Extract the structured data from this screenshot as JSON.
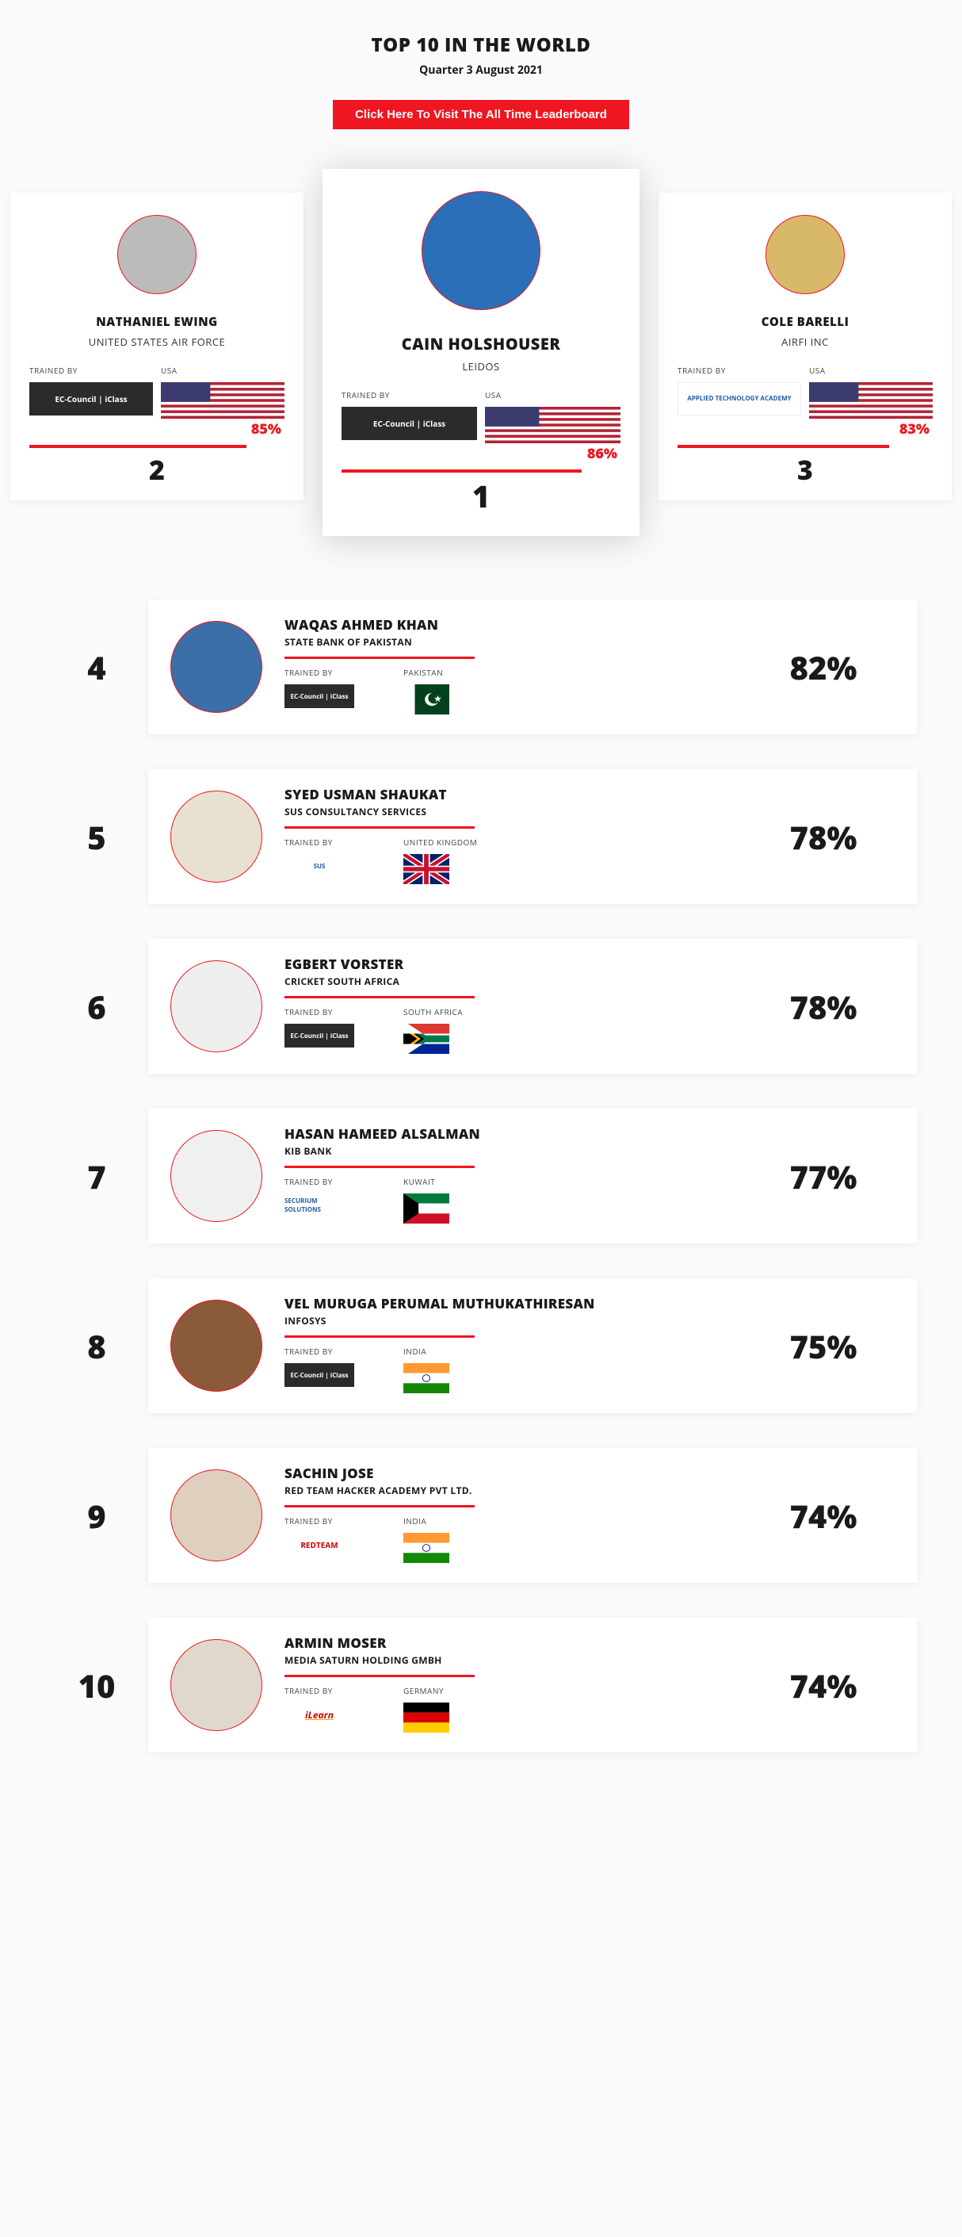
{
  "header": {
    "title": "TOP 10 IN THE WORLD",
    "subtitle": "Quarter 3 August 2021",
    "cta": "Click Here To Visit The All Time Leaderboard"
  },
  "labels": {
    "trained_by": "TRAINED BY"
  },
  "colors": {
    "accent": "#ee1620",
    "card_bg": "#ffffff",
    "page_bg": "#fafafa"
  },
  "podium": [
    {
      "rank": "2",
      "name": "NATHANIEL EWING",
      "org": "UNITED STATES AIR FORCE",
      "trainer": "EC-Council | iClass",
      "trainer_style": "dark",
      "country_label": "USA",
      "flag": "usa",
      "percent": "85%",
      "percent_fill": 85,
      "avatar_bg": "#bbbbbb"
    },
    {
      "rank": "1",
      "name": "CAIN HOLSHOUSER",
      "org": "LEIDOS",
      "trainer": "EC-Council | iClass",
      "trainer_style": "dark",
      "country_label": "USA",
      "flag": "usa",
      "percent": "86%",
      "percent_fill": 86,
      "avatar_bg": "#2a6fb8"
    },
    {
      "rank": "3",
      "name": "COLE BARELLI",
      "org": "AIRFI INC",
      "trainer": "APPLIED TECHNOLOGY ACADEMY",
      "trainer_style": "light",
      "country_label": "USA",
      "flag": "usa",
      "percent": "83%",
      "percent_fill": 83,
      "avatar_bg": "#d8b96a"
    }
  ],
  "rows": [
    {
      "rank": "4",
      "name": "WAQAS AHMED KHAN",
      "org": "STATE BANK OF PAKISTAN",
      "trainer": "EC-Council | iClass",
      "trainer_style": "dark",
      "country_label": "PAKISTAN",
      "flag": "pakistan",
      "percent": "82%",
      "avatar_bg": "#3a6fa8"
    },
    {
      "rank": "5",
      "name": "SYED USMAN SHAUKAT",
      "org": "SUS CONSULTANCY SERVICES",
      "trainer": "SUS",
      "trainer_style": "light",
      "country_label": "UNITED KINGDOM",
      "flag": "uk",
      "percent": "78%",
      "avatar_bg": "#e8e0d0"
    },
    {
      "rank": "6",
      "name": "EGBERT VORSTER",
      "org": "CRICKET SOUTH AFRICA",
      "trainer": "EC-Council | iClass",
      "trainer_style": "dark",
      "country_label": "SOUTH AFRICA",
      "flag": "za",
      "percent": "78%",
      "avatar_bg": "#eeeeee"
    },
    {
      "rank": "7",
      "name": "HASAN HAMEED ALSALMAN",
      "org": "KIB BANK",
      "trainer": "SECURIUM SOLUTIONS",
      "trainer_style": "light",
      "country_label": "KUWAIT",
      "flag": "kuwait",
      "percent": "77%",
      "avatar_bg": "#f0f0f0"
    },
    {
      "rank": "8",
      "name": "VEL MURUGA PERUMAL MUTHUKATHIRESAN",
      "org": "INFOSYS",
      "trainer": "EC-Council | iClass",
      "trainer_style": "dark",
      "country_label": "INDIA",
      "flag": "india",
      "percent": "75%",
      "avatar_bg": "#8a5a3a"
    },
    {
      "rank": "9",
      "name": "SACHIN JOSE",
      "org": "RED TEAM HACKER ACADEMY PVT LTD.",
      "trainer": "REDTEAM",
      "trainer_style": "red",
      "country_label": "INDIA",
      "flag": "india",
      "percent": "74%",
      "avatar_bg": "#decfbf"
    },
    {
      "rank": "10",
      "name": "ARMIN MOSER",
      "org": "MEDIA SATURN HOLDING GMBH",
      "trainer": "iLearn",
      "trainer_style": "ilearn",
      "country_label": "GERMANY",
      "flag": "germany",
      "percent": "74%",
      "avatar_bg": "#e0d8cc"
    }
  ]
}
